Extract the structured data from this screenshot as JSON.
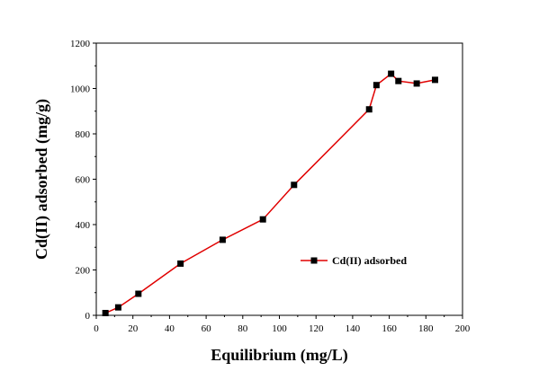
{
  "chart_data": {
    "type": "line",
    "title": "",
    "xlabel": "Equilibrium (mg/L)",
    "ylabel": "Cd(II) adsorbed (mg/g)",
    "xlim": [
      0,
      200
    ],
    "ylim": [
      0,
      1200
    ],
    "x_ticks": [
      0,
      20,
      40,
      60,
      80,
      100,
      120,
      140,
      160,
      180,
      200
    ],
    "y_ticks": [
      0,
      200,
      400,
      600,
      800,
      1000,
      1200
    ],
    "grid": false,
    "legend_position": "center-right",
    "series": [
      {
        "name": "Cd(II) adsorbed",
        "color": "#e00000",
        "marker": "square",
        "marker_color": "#000000",
        "x": [
          5,
          12,
          23,
          46,
          69,
          91,
          108,
          149,
          153,
          161,
          165,
          175,
          185
        ],
        "y": [
          10,
          35,
          95,
          228,
          333,
          423,
          575,
          908,
          1015,
          1065,
          1033,
          1022,
          1038
        ]
      }
    ]
  }
}
